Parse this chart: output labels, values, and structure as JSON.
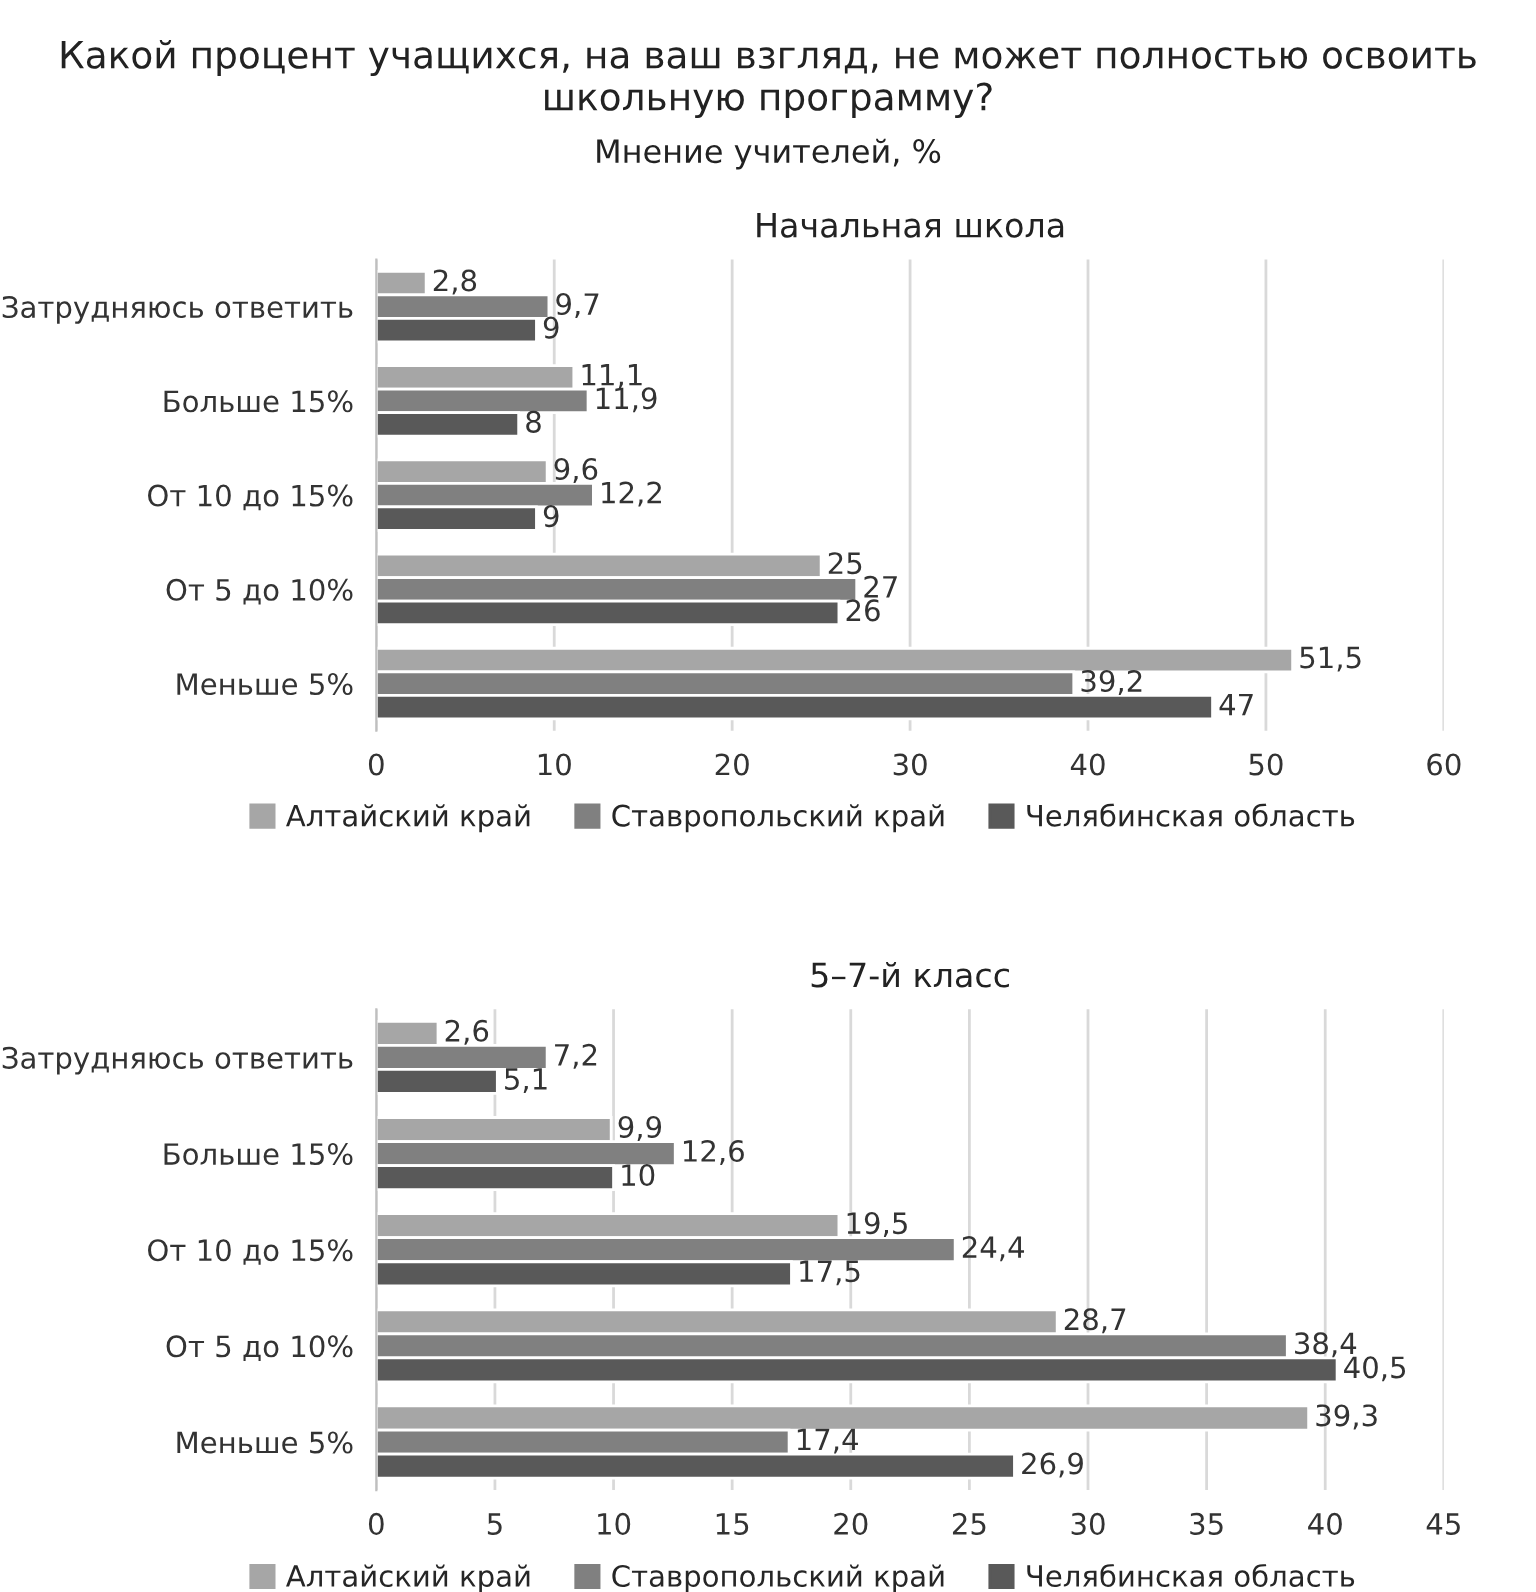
{
  "chart_data": [
    {
      "type": "bar",
      "orientation": "horizontal",
      "title": "Начальная школа",
      "annotations": [
        "Какой процент учащихся, на ваш взгляд, не может полностью освоить школьную программу?",
        "Мнение учителей, %"
      ],
      "categories": [
        "Затрудняюсь ответить",
        "Больше 15%",
        "От 10 до 15%",
        "От 5 до 10%",
        "Меньше 5%"
      ],
      "series": [
        {
          "name": "Алтайский край",
          "color": "#a6a6a6",
          "values": [
            2.8,
            11.1,
            9.6,
            25,
            51.5
          ],
          "value_labels": [
            "2,8",
            "11,1",
            "9,6",
            "25",
            "51,5"
          ]
        },
        {
          "name": "Ставропольский край",
          "color": "#808080",
          "values": [
            9.7,
            11.9,
            12.2,
            27,
            39.2
          ],
          "value_labels": [
            "9,7",
            "11,9",
            "12,2",
            "27",
            "39,2"
          ]
        },
        {
          "name": "Челябинская область",
          "color": "#595959",
          "values": [
            9,
            8,
            9,
            26,
            47
          ],
          "value_labels": [
            "9",
            "8",
            "9",
            "26",
            "47"
          ]
        }
      ],
      "xlim": [
        0,
        60
      ],
      "xticks": [
        0,
        10,
        20,
        30,
        40,
        50,
        60
      ],
      "grid": "x",
      "legend": "bottom"
    },
    {
      "type": "bar",
      "orientation": "horizontal",
      "title": "5–7-й класс",
      "categories": [
        "Затрудняюсь ответить",
        "Больше 15%",
        "От 10 до 15%",
        "От 5 до 10%",
        "Меньше 5%"
      ],
      "series": [
        {
          "name": "Алтайский край",
          "color": "#a6a6a6",
          "values": [
            2.6,
            9.9,
            19.5,
            28.7,
            39.3
          ],
          "value_labels": [
            "2,6",
            "9,9",
            "19,5",
            "28,7",
            "39,3"
          ]
        },
        {
          "name": "Ставропольский край",
          "color": "#808080",
          "values": [
            7.2,
            12.6,
            24.4,
            38.4,
            17.4
          ],
          "value_labels": [
            "7,2",
            "12,6",
            "24,4",
            "38,4",
            "17,4"
          ]
        },
        {
          "name": "Челябинская область",
          "color": "#595959",
          "values": [
            5.1,
            10,
            17.5,
            40.5,
            26.9
          ],
          "value_labels": [
            "5,1",
            "10",
            "17,5",
            "40,5",
            "26,9"
          ]
        }
      ],
      "xlim": [
        0,
        45
      ],
      "xticks": [
        0,
        5,
        10,
        15,
        20,
        25,
        30,
        35,
        40,
        45
      ],
      "grid": "x",
      "legend": "bottom"
    }
  ]
}
